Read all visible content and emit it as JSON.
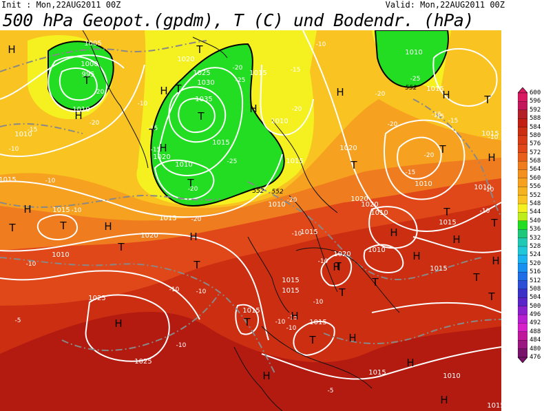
{
  "header": {
    "init": "Init : Mon,22AUG2011 00Z",
    "valid": "Valid: Mon,22AUG2011 00Z",
    "title": "500 hPa Geopot.(gpdm), T (C) und Bodendr. (hPa)"
  },
  "colors": {
    "green_region": "#22dd22",
    "dark_red": "#b31a10",
    "red": "#cc2e12",
    "orange_red": "#e0481a",
    "orange": "#ef7d1f",
    "light_orange": "#f6a11f",
    "yellow_orange": "#f9c321",
    "yellow": "#f5f020"
  },
  "colorbar": {
    "ticks": [
      "600",
      "596",
      "592",
      "588",
      "584",
      "580",
      "576",
      "572",
      "568",
      "564",
      "560",
      "556",
      "552",
      "548",
      "544",
      "540",
      "536",
      "532",
      "528",
      "524",
      "520",
      "516",
      "512",
      "508",
      "504",
      "500",
      "496",
      "492",
      "488",
      "484",
      "480",
      "476"
    ],
    "colors": [
      "#d81b60",
      "#c2185b",
      "#b3202a",
      "#c21f14",
      "#cc2e12",
      "#d83c16",
      "#e0481a",
      "#e85f1c",
      "#ef7d1f",
      "#f39020",
      "#f6a11f",
      "#f7b220",
      "#f9c321",
      "#f5f020",
      "#bdee1c",
      "#22dd22",
      "#1ec87a",
      "#1fc9b4",
      "#20c7d8",
      "#1ab2ef",
      "#1890f2",
      "#1f6ee8",
      "#2d4fd8",
      "#3b31c8",
      "#5a25c8",
      "#8a20cc",
      "#b81fd0",
      "#d620c8",
      "#c0189a",
      "#9a1680",
      "#78126a"
    ]
  },
  "isobars": {
    "high_symbols": [
      "H",
      "H",
      "H",
      "H",
      "H",
      "H",
      "H",
      "H",
      "H",
      "H",
      "H",
      "H",
      "H",
      "H",
      "H",
      "H",
      "H",
      "H",
      "H",
      "H",
      "H",
      "H"
    ],
    "low_symbols": [
      "T",
      "T",
      "T",
      "T",
      "T",
      "T",
      "T",
      "T",
      "T",
      "T",
      "T",
      "T",
      "T",
      "T",
      "T",
      "T",
      "T",
      "T",
      "T",
      "T",
      "T",
      "T"
    ],
    "pressure_labels": [
      "1005",
      "1000",
      "995",
      "1010",
      "1020",
      "1025",
      "1030",
      "1035",
      "1015",
      "1010",
      "1020",
      "1010",
      "1015",
      "1010",
      "1015",
      "1020",
      "1010",
      "1015",
      "1015",
      "1010",
      "1020",
      "1015",
      "1015",
      "1025",
      "1015",
      "1015",
      "1025",
      "1015",
      "1010",
      "1010",
      "1010",
      "1015",
      "1020",
      "1015",
      "1020",
      "1010",
      "1010",
      "1010",
      "1015",
      "1015",
      "1015",
      "1015",
      "1020",
      "1015"
    ],
    "temp_labels": [
      "-20",
      "-20",
      "-15",
      "-10",
      "-15",
      "-20",
      "-25",
      "-15",
      "-10",
      "-20",
      "-25",
      "-10",
      "-10",
      "-20",
      "-20",
      "-15",
      "-20",
      "-10",
      "-10",
      "-10",
      "-10",
      "-10",
      "-10",
      "-10",
      "-5",
      "-10",
      "-5",
      "-25",
      "-20",
      "-15",
      "-15",
      "-10",
      "-10",
      "-20",
      "-15",
      "-10",
      "-20",
      "-15",
      "-10",
      "-10",
      "-15"
    ],
    "height_labels": [
      "552",
      "552",
      "552"
    ]
  }
}
